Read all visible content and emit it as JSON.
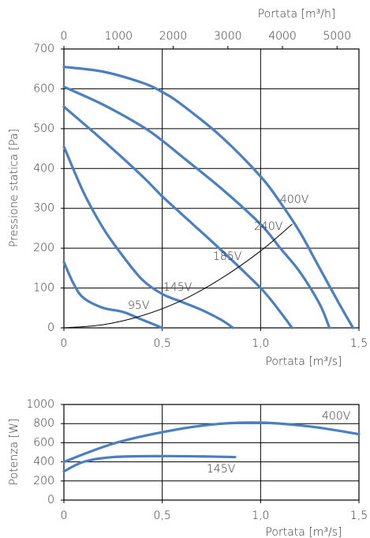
{
  "chart_data": [
    {
      "type": "line",
      "x_label": "Portata [m³/s]",
      "x2_label": "Portata [m³/h]",
      "y_label": "Pressione statica [Pa]",
      "xlim": [
        0,
        1.5
      ],
      "xticks": [
        0,
        {
          "value": 0.5,
          "label": "0,5"
        },
        {
          "value": 1,
          "label": "1,0"
        },
        {
          "value": 1.5,
          "label": "1,5"
        }
      ],
      "x2lim": [
        0,
        5400
      ],
      "x2ticks": [
        0,
        1000,
        2000,
        3000,
        4000,
        5000
      ],
      "ylim": [
        0,
        700
      ],
      "yticks": [
        0,
        100,
        200,
        300,
        400,
        500,
        600,
        700
      ],
      "series": [
        {
          "name": "400V",
          "color": "#4a7fc1",
          "x": [
            0,
            0.2,
            0.4,
            0.5,
            0.6,
            0.8,
            1.0,
            1.1,
            1.2,
            1.3,
            1.4,
            1.47
          ],
          "values": [
            655,
            643,
            615,
            592,
            560,
            480,
            380,
            315,
            240,
            150,
            60,
            0
          ]
        },
        {
          "name": "240V",
          "color": "#4a7fc1",
          "x": [
            0,
            0.2,
            0.4,
            0.5,
            0.6,
            0.8,
            1.0,
            1.1,
            1.2,
            1.3,
            1.35
          ],
          "values": [
            605,
            560,
            505,
            470,
            430,
            350,
            260,
            200,
            140,
            60,
            0
          ]
        },
        {
          "name": "185V",
          "color": "#4a7fc1",
          "x": [
            0,
            0.2,
            0.4,
            0.5,
            0.6,
            0.8,
            1.0,
            1.1,
            1.16
          ],
          "values": [
            555,
            470,
            380,
            330,
            285,
            195,
            100,
            40,
            0
          ]
        },
        {
          "name": "145V",
          "color": "#4a7fc1",
          "x": [
            0,
            0.1,
            0.2,
            0.3,
            0.4,
            0.5,
            0.6,
            0.7,
            0.8,
            0.86
          ],
          "values": [
            455,
            340,
            250,
            180,
            120,
            85,
            65,
            45,
            20,
            0
          ]
        },
        {
          "name": "95V",
          "color": "#4a7fc1",
          "x": [
            0,
            0.05,
            0.1,
            0.2,
            0.3,
            0.4,
            0.5
          ],
          "values": [
            165,
            110,
            75,
            50,
            40,
            20,
            0
          ]
        },
        {
          "color": "#000000",
          "x": [
            0,
            0.2,
            0.4,
            0.6,
            0.8,
            1.0,
            1.16
          ],
          "values": [
            0,
            8,
            31,
            69,
            124,
            193,
            260
          ]
        }
      ]
    },
    {
      "type": "line",
      "x_label": "Portata [m³/s]",
      "y_label": "Potenza [W]",
      "xlim": [
        0,
        1.5
      ],
      "xticks": [
        0,
        {
          "value": 0.5,
          "label": "0,5"
        },
        {
          "value": 1,
          "label": "1,0"
        },
        {
          "value": 1.5,
          "label": "1,5"
        }
      ],
      "ylim": [
        0,
        1000
      ],
      "yticks": [
        0,
        200,
        400,
        600,
        800,
        1000
      ],
      "series": [
        {
          "name": "400V",
          "color": "#4a7fc1",
          "x": [
            0,
            0.25,
            0.5,
            0.75,
            1.0,
            1.25,
            1.5
          ],
          "values": [
            400,
            590,
            710,
            790,
            810,
            770,
            690
          ]
        },
        {
          "name": "145V",
          "color": "#4a7fc1",
          "x": [
            0,
            0.1,
            0.25,
            0.5,
            0.75,
            0.87
          ],
          "values": [
            300,
            400,
            450,
            460,
            455,
            450
          ]
        }
      ]
    }
  ]
}
